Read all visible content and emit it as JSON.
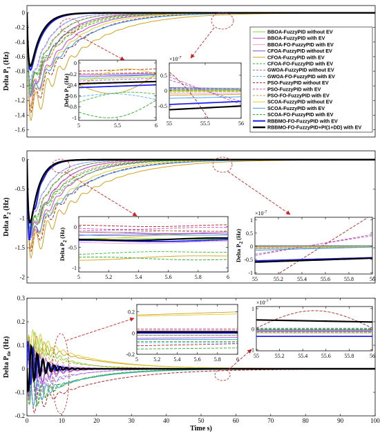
{
  "chart_data": [
    {
      "type": "line",
      "panel": "top",
      "ylabel": "Delta P",
      "ylabel_sub": "1",
      "yunit": " (Hz)",
      "xlim": [
        0,
        100
      ],
      "ylim": [
        -1.7,
        0.1
      ],
      "yticks": [
        0,
        -0.2,
        -0.4,
        -0.6,
        -0.8,
        -1,
        -1.2,
        -1.4,
        -1.6
      ],
      "xticks": [],
      "grid": false,
      "legend_position": "top-right",
      "legend": [
        {
          "name": "BBOA-FuzzyPID without EV",
          "color": "#77dd33",
          "dash": "solid",
          "width": 1
        },
        {
          "name": "BBOA-FuzzyPID with EV",
          "color": "#cc44cc",
          "dash": "solid",
          "width": 1
        },
        {
          "name": "BBOA-FO-FuzzyPID with EV",
          "color": "#ee99dd",
          "dash": "solid",
          "width": 1
        },
        {
          "name": "CFOA-FuzzyPID without EV",
          "color": "#8855cc",
          "dash": "solid",
          "width": 1
        },
        {
          "name": "CFOA-FuzzyPID with EV",
          "color": "#d4a017",
          "dash": "solid",
          "width": 1
        },
        {
          "name": "CFOA-FO-FuzzyPID with EV",
          "color": "#33bb33",
          "dash": "dashed",
          "width": 1
        },
        {
          "name": "GWOA-FuzzyPID without EV",
          "color": "#9966aa",
          "dash": "dashed",
          "width": 1
        },
        {
          "name": "GWOA-FO-FuzzyPID with EV",
          "color": "#55aaff",
          "dash": "dashed",
          "width": 1
        },
        {
          "name": "PSO-FuzzyPID without EV",
          "color": "#aa2222",
          "dash": "dashed",
          "width": 1
        },
        {
          "name": "PSO-FuzzyPID with EV",
          "color": "#dd44cc",
          "dash": "dashed",
          "width": 1
        },
        {
          "name": "PSO-FO-FuzzyPID with EV",
          "color": "#cc9933",
          "dash": "dashed",
          "width": 1
        },
        {
          "name": "SCOA-FuzzyPID without EV",
          "color": "#ddcc33",
          "dash": "solid",
          "width": 1
        },
        {
          "name": "SCOA-FuzzyPID with EV",
          "color": "#3399ee",
          "dash": "solid",
          "width": 1
        },
        {
          "name": "SCOA-FO-FuzzyPID with EV",
          "color": "#22aa22",
          "dash": "dashed",
          "width": 1
        },
        {
          "name": "RBBMO-FO-FuzzyPID with EV",
          "color": "#2222ee",
          "dash": "solid",
          "width": 2
        },
        {
          "name": "RBBMO-FO-FuzzyPID+PI(1+DD) with EV",
          "color": "#000000",
          "dash": "solid",
          "width": 2.4
        }
      ],
      "insets": [
        {
          "xlim": [
            5,
            6
          ],
          "xticks": [
            5,
            5.5,
            6
          ],
          "ylim": [
            -1.05,
            0.05
          ],
          "yticks": [
            0,
            -0.2,
            -0.4,
            -0.6,
            -0.8,
            -1
          ],
          "ylabel": "Delta P",
          "ylabel_sub": "1",
          "yunit": " (Hz)"
        },
        {
          "xlim": [
            55,
            56
          ],
          "xticks": [
            55,
            55.5,
            56
          ],
          "ylim": [
            -0.9,
            0.9
          ],
          "yticks": [
            0.5,
            0,
            -0.5
          ],
          "exponent": "×10",
          "exponent_power": "-7"
        }
      ]
    },
    {
      "type": "line",
      "panel": "middle",
      "ylabel": "Delta P",
      "ylabel_sub": "2",
      "yunit": " (Hz)",
      "xlim": [
        0,
        100
      ],
      "ylim": [
        -2.1,
        0.15
      ],
      "yticks": [
        0,
        -0.5,
        -1,
        -1.5,
        -2
      ],
      "xticks": [],
      "grid": false,
      "insets": [
        {
          "xlim": [
            5,
            6
          ],
          "xticks": [
            5,
            5.2,
            5.4,
            5.6,
            5.8,
            6
          ],
          "ylim": [
            -1.1,
            0.25
          ],
          "yticks": [
            0,
            -0.5,
            -1
          ],
          "ylabel": "Delta P",
          "ylabel_sub": "2",
          "yunit": " (Hz)"
        },
        {
          "xlim": [
            55,
            56
          ],
          "xticks": [
            55,
            55.2,
            55.4,
            55.6,
            55.8,
            56
          ],
          "ylim": [
            -1.05,
            1.1
          ],
          "yticks": [
            1,
            0.5,
            0,
            -0.5,
            -1
          ],
          "ylabel": "Delta P",
          "ylabel_sub": "2",
          "yunit": " (Hz)",
          "exponent": "×10",
          "exponent_power": "-7"
        }
      ]
    },
    {
      "type": "line",
      "panel": "bottom",
      "ylabel": "Delta P",
      "ylabel_sub": "tie",
      "yunit": " (Hz)",
      "xlabel": "Time s)",
      "xlim": [
        0,
        100
      ],
      "ylim": [
        -0.2,
        0.3
      ],
      "yticks": [
        0.3,
        0.2,
        0.1,
        0,
        -0.1,
        -0.2
      ],
      "xticks": [
        0,
        10,
        20,
        30,
        40,
        50,
        60,
        70,
        80,
        90,
        100
      ],
      "grid": false,
      "insets": [
        {
          "xlim": [
            5,
            6
          ],
          "xticks": [
            5,
            5.2,
            5.4,
            5.6,
            5.8,
            6
          ],
          "ylim": [
            -0.2,
            0.27
          ],
          "yticks": [
            0.2,
            0,
            -0.2
          ]
        },
        {
          "xlim": [
            55,
            56
          ],
          "xticks": [
            55,
            55.2,
            55.4,
            55.6,
            55.8,
            56
          ],
          "ylim": [
            -1.05,
            1.1
          ],
          "yticks": [
            1,
            0,
            -1
          ],
          "exponent": "×10",
          "exponent_power": "-7"
        }
      ]
    }
  ],
  "palette": {
    "background": "#ffffff",
    "axis": "#000000",
    "arrow": "#cc2222"
  }
}
